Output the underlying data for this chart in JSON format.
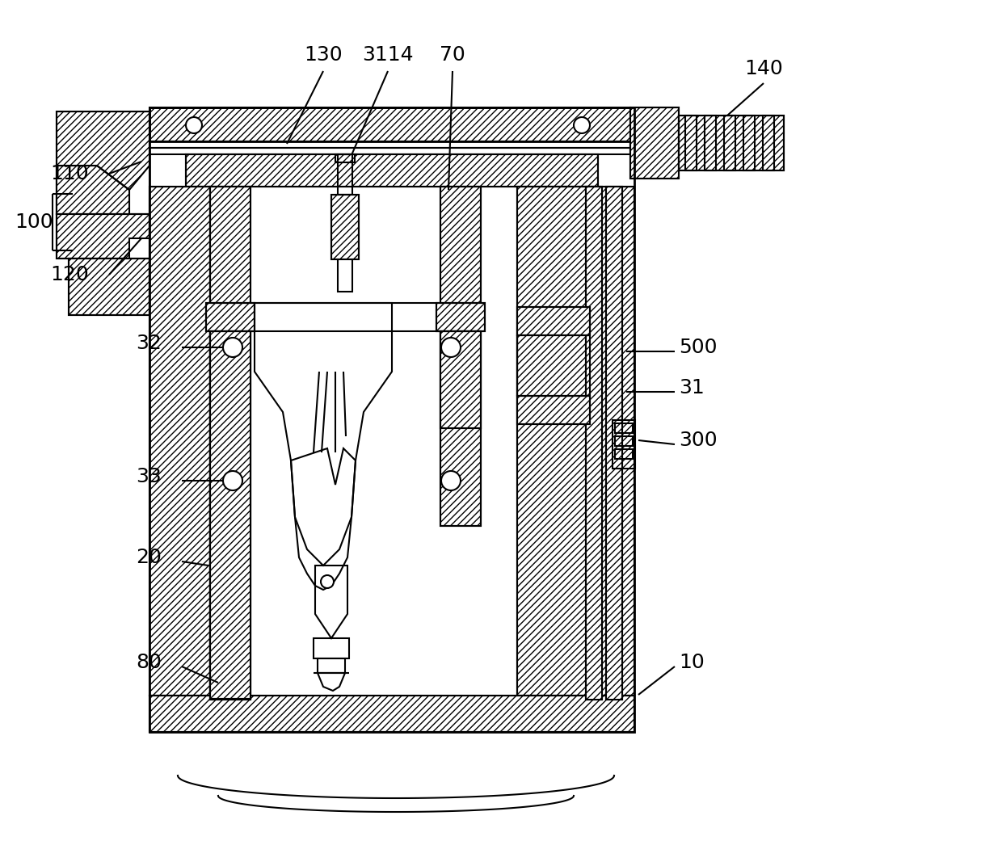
{
  "bg_color": "#ffffff",
  "line_color": "#000000",
  "lw": 1.5,
  "tlw": 2.0
}
